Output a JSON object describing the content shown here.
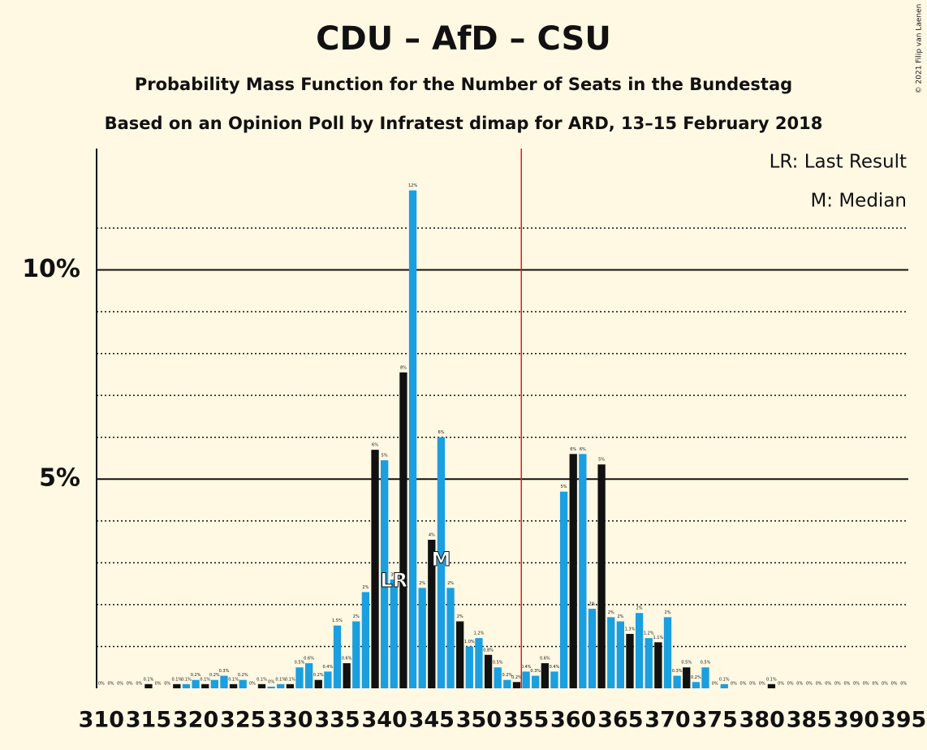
{
  "chart_data": {
    "type": "bar",
    "title": "CDU – AfD – CSU",
    "subtitles": [
      "Probability Mass Function for the Number of Seats in the Bundestag",
      "Based on an Opinion Poll by Infratest dimap for ARD, 13–15 February 2018"
    ],
    "legend_notes": [
      "LR: Last Result",
      "M: Median"
    ],
    "credit": "© 2021 Filip van Laenen",
    "x": [
      310,
      311,
      312,
      313,
      314,
      315,
      316,
      317,
      318,
      319,
      320,
      321,
      322,
      323,
      324,
      325,
      326,
      327,
      328,
      329,
      330,
      331,
      332,
      333,
      334,
      335,
      336,
      337,
      338,
      339,
      340,
      341,
      342,
      343,
      344,
      345,
      346,
      347,
      348,
      349,
      350,
      351,
      352,
      353,
      354,
      355,
      356,
      357,
      358,
      359,
      360,
      361,
      362,
      363,
      364,
      365,
      366,
      367,
      368,
      369,
      370,
      371,
      372,
      373,
      374,
      375,
      376,
      377,
      378,
      379,
      380,
      381,
      382,
      383,
      384,
      385,
      386,
      387,
      388,
      389,
      390,
      391,
      392,
      393,
      394,
      395
    ],
    "values": [
      0,
      0,
      0,
      0,
      0,
      0.1,
      0,
      0,
      0.1,
      0.1,
      0.2,
      0.1,
      0.2,
      0.3,
      0.1,
      0.2,
      0,
      0.1,
      0.04,
      0.1,
      0.1,
      0.5,
      0.6,
      0.2,
      0.4,
      1.5,
      0.6,
      1.6,
      2.3,
      5.7,
      5.45,
      2.6,
      7.55,
      11.9,
      2.4,
      3.55,
      6.0,
      2.4,
      1.6,
      1.0,
      1.2,
      0.8,
      0.5,
      0.2,
      0.15,
      0.4,
      0.3,
      0.6,
      0.4,
      4.7,
      5.6,
      5.6,
      1.9,
      5.35,
      1.7,
      1.6,
      1.3,
      1.8,
      1.2,
      1.1,
      1.7,
      0.3,
      0.5,
      0.15,
      0.5,
      0,
      0.1,
      0,
      0,
      0,
      0,
      0.1,
      0,
      0,
      0,
      0,
      0,
      0,
      0,
      0,
      0,
      0,
      0,
      0,
      0,
      0
    ],
    "value_labels": [
      "0%",
      "0%",
      "0%",
      "0%",
      "0%",
      "0.1%",
      "0%",
      "0%",
      "0.1%",
      "0.1%",
      "0.2%",
      "0.1%",
      "0.2%",
      "0.3%",
      "0.1%",
      "0.2%",
      "0%",
      "0.1%",
      "0%",
      "0.1%",
      "0.1%",
      "0.5%",
      "0.6%",
      "0.2%",
      "0.4%",
      "1.5%",
      "0.6%",
      "2%",
      "2%",
      "6%",
      "5%",
      "3%",
      "8%",
      "12%",
      "2%",
      "4%",
      "6%",
      "2%",
      "2%",
      "1.0%",
      "1.2%",
      "0.8%",
      "0.5%",
      "0.2%",
      "0.2%",
      "0.4%",
      "0.3%",
      "0.6%",
      "0.4%",
      "5%",
      "6%",
      "6%",
      "2%",
      "5%",
      "2%",
      "2%",
      "1.3%",
      "2%",
      "1.2%",
      "1.1%",
      "2%",
      "0.3%",
      "0.5%",
      "0.2%",
      "0.5%",
      "0%",
      "0.1%",
      "0%",
      "0%",
      "0%",
      "0%",
      "0.1%",
      "0%",
      "0%",
      "0%",
      "0%",
      "0%",
      "0%",
      "0%",
      "0%",
      "0%",
      "0%",
      "0%",
      "0%",
      "0%",
      "0%"
    ],
    "colors": [
      "#1a9fe0",
      "#1a9fe0",
      "#111111",
      "#1a9fe0",
      "#1a9fe0",
      "#111111",
      "#1a9fe0",
      "#1a9fe0",
      "#111111",
      "#1a9fe0",
      "#1a9fe0",
      "#111111",
      "#1a9fe0",
      "#1a9fe0",
      "#111111",
      "#1a9fe0",
      "#1a9fe0",
      "#111111",
      "#1a9fe0",
      "#1a9fe0",
      "#111111",
      "#1a9fe0",
      "#1a9fe0",
      "#111111",
      "#1a9fe0",
      "#1a9fe0",
      "#111111",
      "#1a9fe0",
      "#1a9fe0",
      "#111111",
      "#1a9fe0",
      "#1a9fe0",
      "#111111",
      "#1a9fe0",
      "#1a9fe0",
      "#111111",
      "#1a9fe0",
      "#1a9fe0",
      "#111111",
      "#1a9fe0",
      "#1a9fe0",
      "#111111",
      "#1a9fe0",
      "#1a9fe0",
      "#111111",
      "#1a9fe0",
      "#1a9fe0",
      "#111111",
      "#1a9fe0",
      "#1a9fe0",
      "#111111",
      "#1a9fe0",
      "#1a9fe0",
      "#111111",
      "#1a9fe0",
      "#1a9fe0",
      "#111111",
      "#1a9fe0",
      "#1a9fe0",
      "#111111",
      "#1a9fe0",
      "#1a9fe0",
      "#111111",
      "#1a9fe0",
      "#1a9fe0",
      "#111111",
      "#1a9fe0",
      "#1a9fe0",
      "#111111",
      "#1a9fe0",
      "#1a9fe0",
      "#111111",
      "#1a9fe0",
      "#1a9fe0",
      "#111111",
      "#1a9fe0",
      "#1a9fe0",
      "#111111",
      "#1a9fe0",
      "#1a9fe0",
      "#111111",
      "#1a9fe0",
      "#1a9fe0",
      "#111111",
      "#1a9fe0",
      "#1a9fe0"
    ],
    "xlim": [
      309.5,
      395.5
    ],
    "xticks": [
      310,
      315,
      320,
      325,
      330,
      335,
      340,
      345,
      350,
      355,
      360,
      365,
      370,
      375,
      380,
      385,
      390,
      395
    ],
    "ylim": [
      0,
      12.9
    ],
    "yticks": [
      {
        "value": 5,
        "label": "5%"
      },
      {
        "value": 10,
        "label": "10%"
      }
    ],
    "minor_yticks": [
      1,
      2,
      3,
      4,
      6,
      7,
      8,
      9,
      11
    ],
    "majority": 355,
    "markers": [
      {
        "x": 341,
        "label": "LR"
      },
      {
        "x": 346,
        "label": "M"
      }
    ]
  }
}
